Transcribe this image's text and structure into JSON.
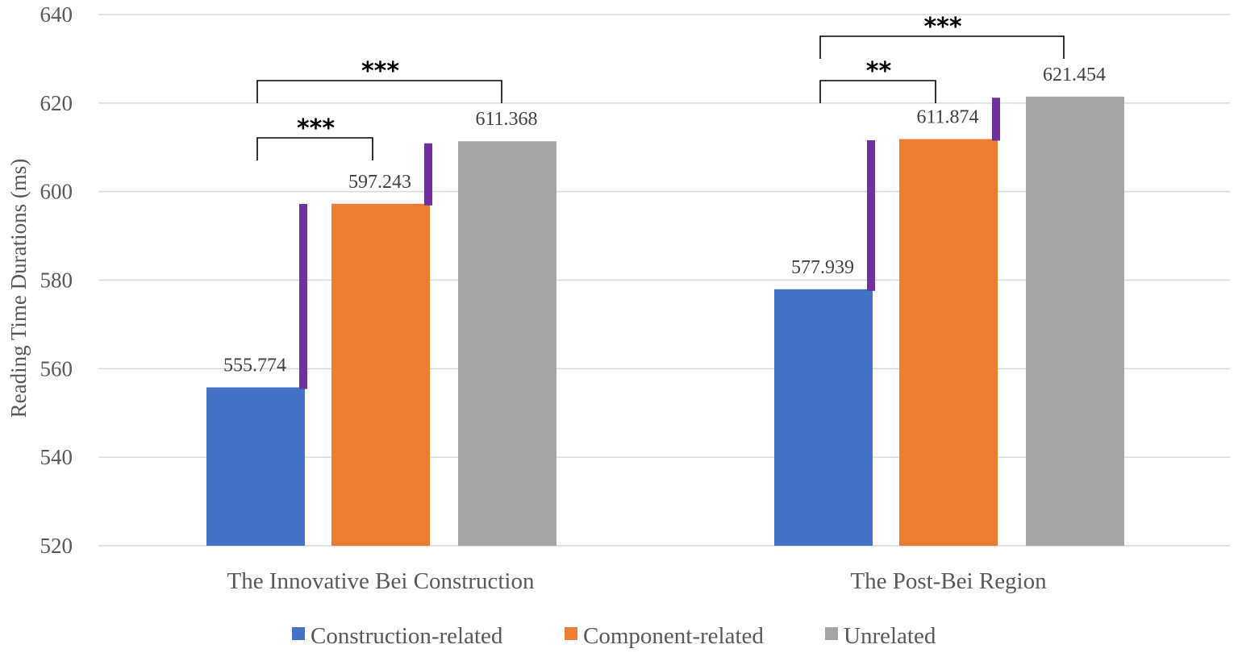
{
  "chart_data": {
    "type": "bar",
    "title": "",
    "xlabel": "",
    "ylabel": "Reading Time Durations (ms)",
    "ylim": [
      520,
      640
    ],
    "yticks": [
      "520",
      "540",
      "560",
      "580",
      "600",
      "620",
      "640"
    ],
    "categories": [
      "The Innovative Bei Construction",
      "The Post-Bei Region"
    ],
    "series": [
      {
        "name": "Construction-related",
        "color": "#4472C4",
        "values": [
          555.774,
          577.939
        ],
        "labels": [
          "555.774",
          "577.939"
        ],
        "error_top": [
          597.2,
          611.6
        ]
      },
      {
        "name": "Component-related",
        "color": "#ED7D31",
        "values": [
          597.243,
          611.874
        ],
        "labels": [
          "597.243",
          "611.874"
        ],
        "error_top": [
          610.9,
          621.2
        ]
      },
      {
        "name": "Unrelated",
        "color": "#A5A5A5",
        "values": [
          611.368,
          621.454
        ],
        "labels": [
          "611.368",
          "621.454"
        ],
        "error_top": [
          null,
          null
        ]
      }
    ],
    "error_bar_color": "#7030A0",
    "significance": [
      {
        "category": 0,
        "from_series": 0,
        "to_series": 1,
        "label": "***"
      },
      {
        "category": 0,
        "from_series": 0,
        "to_series": 2,
        "label": "***"
      },
      {
        "category": 1,
        "from_series": 0,
        "to_series": 1,
        "label": "**"
      },
      {
        "category": 1,
        "from_series": 0,
        "to_series": 2,
        "label": "***"
      }
    ],
    "legend_position": "bottom",
    "grid": true
  }
}
